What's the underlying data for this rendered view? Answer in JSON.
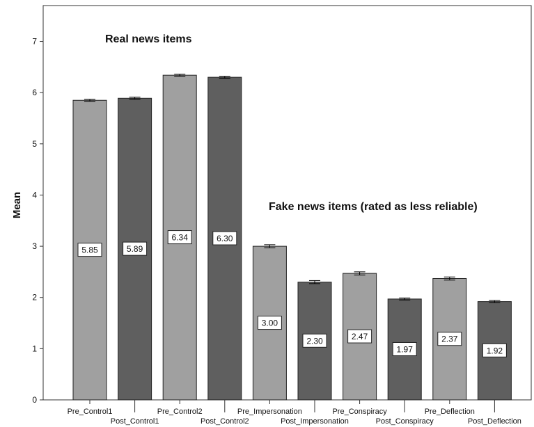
{
  "chart_data": {
    "type": "bar",
    "title": "",
    "xlabel": "",
    "ylabel": "Mean",
    "ylim": [
      0,
      7.7
    ],
    "yticks": [
      0,
      1,
      2,
      3,
      4,
      5,
      6,
      7
    ],
    "grid": false,
    "categories": [
      "Pre_Control1",
      "Post_Control1",
      "Pre_Control2",
      "Post_Control2",
      "Pre_Impersonation",
      "Post_Impersonation",
      "Pre_Conspiracy",
      "Post_Conspiracy",
      "Pre_Deflection",
      "Post_Deflection"
    ],
    "values": [
      5.85,
      5.89,
      6.34,
      6.3,
      3.0,
      2.3,
      2.47,
      1.97,
      2.37,
      1.92
    ],
    "value_labels": [
      "5.85",
      "5.89",
      "6.34",
      "6.30",
      "3.00",
      "2.30",
      "2.47",
      "1.97",
      "2.37",
      "1.92"
    ],
    "error": [
      0.02,
      0.02,
      0.02,
      0.02,
      0.03,
      0.03,
      0.03,
      0.02,
      0.03,
      0.02
    ],
    "bar_colors": [
      "#a0a0a0",
      "#5f5f5f",
      "#a0a0a0",
      "#5f5f5f",
      "#a0a0a0",
      "#5f5f5f",
      "#a0a0a0",
      "#5f5f5f",
      "#a0a0a0",
      "#5f5f5f"
    ],
    "annotations": [
      "Real news items",
      "Fake news items (rated as less reliable)"
    ]
  }
}
